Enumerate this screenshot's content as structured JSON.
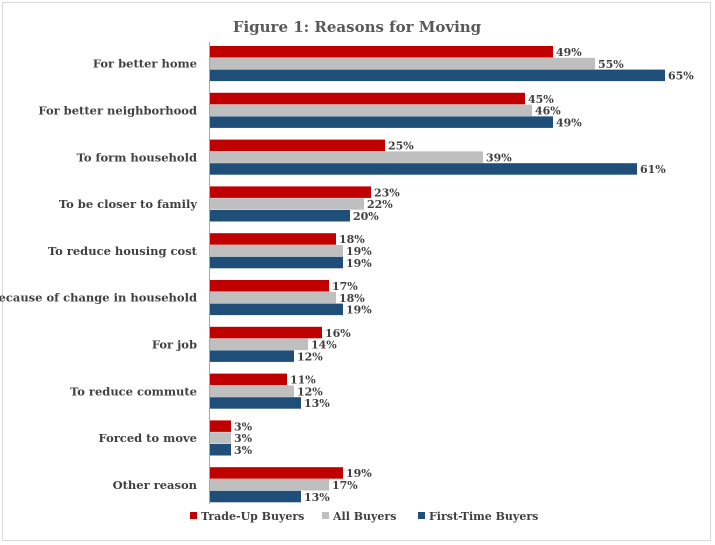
{
  "chart_data": {
    "type": "bar",
    "orientation": "horizontal",
    "title": "Figure 1: Reasons for Moving",
    "xlabel": "",
    "ylabel": "",
    "xlim": [
      0,
      70
    ],
    "grid": false,
    "legend_position": "bottom",
    "value_suffix": "%",
    "categories": [
      "For better home",
      "For better neighborhood",
      "To form household",
      "To be closer to family",
      "To reduce housing cost",
      "Because of change in household",
      "For job",
      "To reduce commute",
      "Forced to move",
      "Other reason"
    ],
    "series": [
      {
        "name": "Trade-Up Buyers",
        "color": "#c00000",
        "values": [
          49,
          45,
          25,
          23,
          18,
          17,
          16,
          11,
          3,
          19
        ]
      },
      {
        "name": "All Buyers",
        "color": "#bfbfbf",
        "values": [
          55,
          46,
          39,
          22,
          19,
          18,
          14,
          12,
          3,
          17
        ]
      },
      {
        "name": "First-Time Buyers",
        "color": "#1f4e79",
        "values": [
          65,
          49,
          61,
          20,
          19,
          19,
          12,
          13,
          3,
          13
        ]
      }
    ]
  }
}
